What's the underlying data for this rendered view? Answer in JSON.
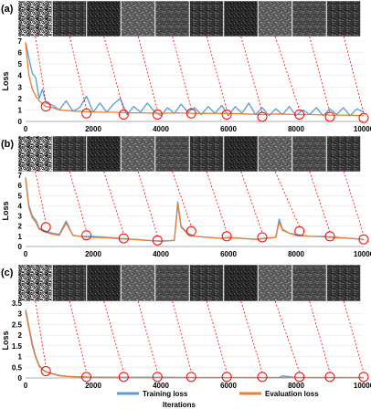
{
  "figure": {
    "x_title": "Iterations",
    "legend": [
      {
        "label": "Training loss",
        "color": "#5b9bd5"
      },
      {
        "label": "Evaluation loss",
        "color": "#ed7d31"
      }
    ],
    "marker_color": "#ff0000"
  },
  "chart_data": [
    {
      "type": "line",
      "panel_label": "(a)",
      "ylabel": "Loss",
      "xlim": [
        0,
        10000
      ],
      "ylim": [
        0,
        7
      ],
      "x_ticks": [
        0,
        2000,
        4000,
        6000,
        8000,
        10000
      ],
      "x_tick_labels": [
        "0",
        "2000",
        "4000",
        "6000",
        "8000",
        "10000"
      ],
      "y_ticks": [
        0,
        1,
        2,
        3,
        4,
        5,
        6,
        7
      ],
      "y_tick_labels": [
        "0",
        "1",
        "2",
        "3",
        "4",
        "5",
        "6",
        "7"
      ],
      "thumbnail_count": 10,
      "checkpoints": [
        {
          "x": 600,
          "y": 1.3
        },
        {
          "x": 1800,
          "y": 0.7
        },
        {
          "x": 2900,
          "y": 0.6
        },
        {
          "x": 3900,
          "y": 0.6
        },
        {
          "x": 4900,
          "y": 0.7
        },
        {
          "x": 5950,
          "y": 0.6
        },
        {
          "x": 7000,
          "y": 0.4
        },
        {
          "x": 8100,
          "y": 0.6
        },
        {
          "x": 9000,
          "y": 0.4
        },
        {
          "x": 10000,
          "y": 0.3
        }
      ],
      "series": [
        {
          "name": "Training loss",
          "color": "#5b9bd5",
          "x": [
            0,
            100,
            200,
            300,
            400,
            500,
            600,
            800,
            1000,
            1200,
            1400,
            1600,
            1800,
            2000,
            2200,
            2400,
            2600,
            2800,
            3000,
            3200,
            3400,
            3600,
            3800,
            4000,
            4200,
            4400,
            4600,
            4800,
            5000,
            5200,
            5400,
            5600,
            5800,
            6000,
            6200,
            6400,
            6600,
            6800,
            7000,
            7200,
            7400,
            7600,
            7800,
            8000,
            8200,
            8400,
            8600,
            8800,
            9000,
            9200,
            9400,
            9600,
            9800,
            10000
          ],
          "y": [
            6.9,
            5.5,
            4.2,
            3.8,
            2.0,
            2.8,
            1.6,
            1.4,
            1.0,
            1.8,
            0.9,
            1.2,
            2.2,
            0.8,
            1.6,
            0.8,
            1.5,
            2.0,
            0.6,
            1.3,
            0.8,
            1.6,
            0.9,
            0.5,
            1.2,
            0.7,
            1.5,
            0.8,
            1.2,
            0.6,
            1.3,
            0.7,
            1.4,
            0.5,
            1.3,
            0.7,
            1.6,
            0.6,
            1.2,
            0.5,
            1.1,
            0.6,
            1.3,
            0.5,
            1.0,
            0.6,
            1.2,
            0.5,
            1.1,
            0.6,
            1.2,
            0.5,
            1.1,
            0.8
          ]
        },
        {
          "name": "Evaluation loss",
          "color": "#ed7d31",
          "x": [
            0,
            100,
            200,
            300,
            400,
            600,
            800,
            1000,
            1400,
            1800,
            2200,
            2600,
            3000,
            3500,
            4000,
            4500,
            5000,
            5500,
            6000,
            6500,
            7000,
            7500,
            8000,
            8500,
            9000,
            9500,
            10000
          ],
          "y": [
            6.8,
            4.0,
            2.8,
            2.2,
            1.8,
            1.3,
            1.2,
            1.0,
            0.9,
            0.85,
            0.8,
            0.8,
            0.75,
            0.75,
            0.7,
            0.75,
            0.7,
            0.7,
            0.7,
            0.65,
            0.6,
            0.65,
            0.6,
            0.6,
            0.55,
            0.55,
            0.5
          ]
        }
      ]
    },
    {
      "type": "line",
      "panel_label": "(b)",
      "ylabel": "Loss",
      "xlim": [
        0,
        10000
      ],
      "ylim": [
        0,
        7
      ],
      "x_ticks": [
        0,
        2000,
        4000,
        6000,
        8000,
        10000
      ],
      "x_tick_labels": [
        "0",
        "2000",
        "4000",
        "6000",
        "8000",
        "10000"
      ],
      "y_ticks": [
        0,
        1,
        2,
        3,
        4,
        5,
        6,
        7
      ],
      "y_tick_labels": [
        "0",
        "1",
        "2",
        "3",
        "4",
        "5",
        "6",
        "7"
      ],
      "thumbnail_count": 10,
      "checkpoints": [
        {
          "x": 600,
          "y": 1.9
        },
        {
          "x": 1800,
          "y": 1.1
        },
        {
          "x": 2900,
          "y": 0.8
        },
        {
          "x": 3900,
          "y": 0.6
        },
        {
          "x": 4900,
          "y": 1.5
        },
        {
          "x": 5950,
          "y": 1.0
        },
        {
          "x": 7000,
          "y": 0.9
        },
        {
          "x": 8100,
          "y": 1.5
        },
        {
          "x": 9000,
          "y": 1.0
        },
        {
          "x": 10000,
          "y": 0.7
        }
      ],
      "series": [
        {
          "name": "Training loss",
          "color": "#5b9bd5",
          "x": [
            0,
            100,
            200,
            300,
            400,
            600,
            800,
            1000,
            1200,
            1400,
            1600,
            2000,
            2400,
            2800,
            3200,
            3600,
            4000,
            4400,
            4500,
            4600,
            4800,
            5000,
            5400,
            5800,
            6000,
            6400,
            6800,
            7000,
            7400,
            7500,
            7600,
            7800,
            8000,
            8400,
            8800,
            9200,
            9600,
            10000
          ],
          "y": [
            6.8,
            4.0,
            3.0,
            2.6,
            1.8,
            1.5,
            1.3,
            1.2,
            2.5,
            1.1,
            1.0,
            1.0,
            0.9,
            0.8,
            0.7,
            0.6,
            0.5,
            0.6,
            4.4,
            2.0,
            1.3,
            1.0,
            0.9,
            0.8,
            0.9,
            0.8,
            0.7,
            0.8,
            0.9,
            2.7,
            1.7,
            1.3,
            1.2,
            1.0,
            1.0,
            0.9,
            0.8,
            0.7
          ]
        },
        {
          "name": "Evaluation loss",
          "color": "#ed7d31",
          "x": [
            0,
            100,
            200,
            300,
            400,
            600,
            800,
            1000,
            1200,
            1400,
            1600,
            2000,
            2400,
            2800,
            3200,
            3600,
            4000,
            4400,
            4500,
            4600,
            4800,
            5000,
            5400,
            5800,
            6000,
            6400,
            6800,
            7000,
            7400,
            7500,
            7600,
            7800,
            8000,
            8400,
            8800,
            9200,
            9600,
            10000
          ],
          "y": [
            6.6,
            3.8,
            2.8,
            2.4,
            1.7,
            1.4,
            1.2,
            1.1,
            2.3,
            1.1,
            1.0,
            0.9,
            0.85,
            0.75,
            0.7,
            0.6,
            0.55,
            0.6,
            4.1,
            1.9,
            1.2,
            1.0,
            0.9,
            0.8,
            0.85,
            0.8,
            0.7,
            0.75,
            0.9,
            2.4,
            1.6,
            1.3,
            1.1,
            1.0,
            0.95,
            0.85,
            0.8,
            0.7
          ]
        }
      ]
    },
    {
      "type": "line",
      "panel_label": "(c)",
      "ylabel": "Loss",
      "xlim": [
        0,
        10000
      ],
      "ylim": [
        0,
        3.5
      ],
      "x_ticks": [
        0,
        2000,
        4000,
        6000,
        8000,
        10000
      ],
      "x_tick_labels": [
        "0",
        "2000",
        "4000",
        "6000",
        "8000",
        "10000"
      ],
      "y_ticks": [
        0,
        0.5,
        1,
        1.5,
        2,
        2.5,
        3,
        3.5
      ],
      "y_tick_labels": [
        "0",
        "0.5",
        "1",
        "1.5",
        "2",
        "2.5",
        "3",
        "3.5"
      ],
      "thumbnail_count": 10,
      "checkpoints": [
        {
          "x": 600,
          "y": 0.32
        },
        {
          "x": 1800,
          "y": 0.05
        },
        {
          "x": 2900,
          "y": 0.05
        },
        {
          "x": 3900,
          "y": 0.05
        },
        {
          "x": 4900,
          "y": 0.05
        },
        {
          "x": 5950,
          "y": 0.05
        },
        {
          "x": 7000,
          "y": 0.05
        },
        {
          "x": 8100,
          "y": 0.05
        },
        {
          "x": 9000,
          "y": 0.05
        },
        {
          "x": 10000,
          "y": 0.05
        }
      ],
      "series": [
        {
          "name": "Training loss",
          "color": "#5b9bd5",
          "x": [
            0,
            100,
            200,
            300,
            400,
            500,
            600,
            800,
            1000,
            1200,
            1500,
            2000,
            3000,
            4000,
            5000,
            6000,
            7000,
            7500,
            7600,
            8000,
            9000,
            10000
          ],
          "y": [
            3.2,
            2.4,
            1.6,
            1.0,
            0.6,
            0.4,
            0.3,
            0.2,
            0.12,
            0.08,
            0.06,
            0.04,
            0.03,
            0.03,
            0.02,
            0.02,
            0.02,
            0.02,
            0.1,
            0.02,
            0.02,
            0.02
          ]
        },
        {
          "name": "Evaluation loss",
          "color": "#ed7d31",
          "x": [
            0,
            100,
            200,
            300,
            400,
            500,
            600,
            800,
            1000,
            1200,
            1500,
            2000,
            3000,
            4000,
            5000,
            6000,
            7000,
            8000,
            9000,
            10000
          ],
          "y": [
            3.1,
            2.3,
            1.5,
            0.95,
            0.55,
            0.38,
            0.28,
            0.18,
            0.1,
            0.07,
            0.05,
            0.03,
            0.02,
            0.02,
            0.02,
            0.02,
            0.02,
            0.02,
            0.02,
            0.02
          ]
        }
      ]
    }
  ]
}
